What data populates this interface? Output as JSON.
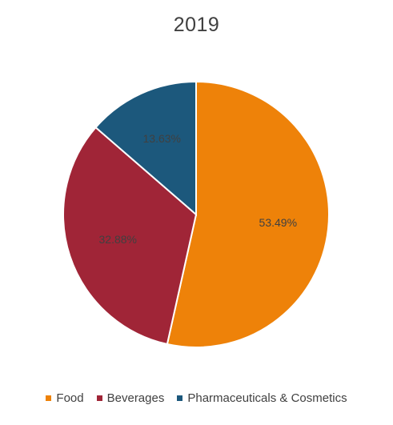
{
  "chart_data": {
    "type": "pie",
    "title": "2019",
    "categories": [
      "Food",
      "Beverages",
      "Pharmaceuticals & Cosmetics"
    ],
    "values": [
      53.49,
      32.88,
      13.63
    ],
    "data_labels": [
      "53.49%",
      "32.88%",
      "13.63%"
    ],
    "colors": [
      "#EE8209",
      "#A02537",
      "#1C587C"
    ],
    "legend_position": "bottom"
  }
}
